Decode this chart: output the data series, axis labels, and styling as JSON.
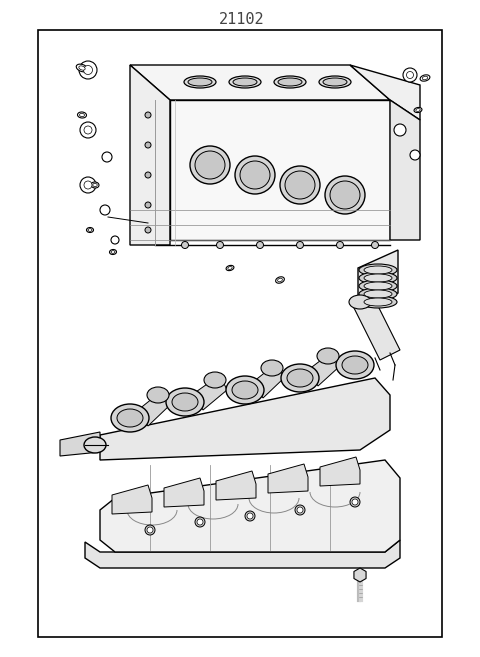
{
  "title": "21102",
  "background_color": "#ffffff",
  "border_color": "#000000",
  "line_color": "#000000",
  "fig_width": 4.8,
  "fig_height": 6.57,
  "dpi": 100,
  "title_fontsize": 11,
  "title_color": "#444444"
}
